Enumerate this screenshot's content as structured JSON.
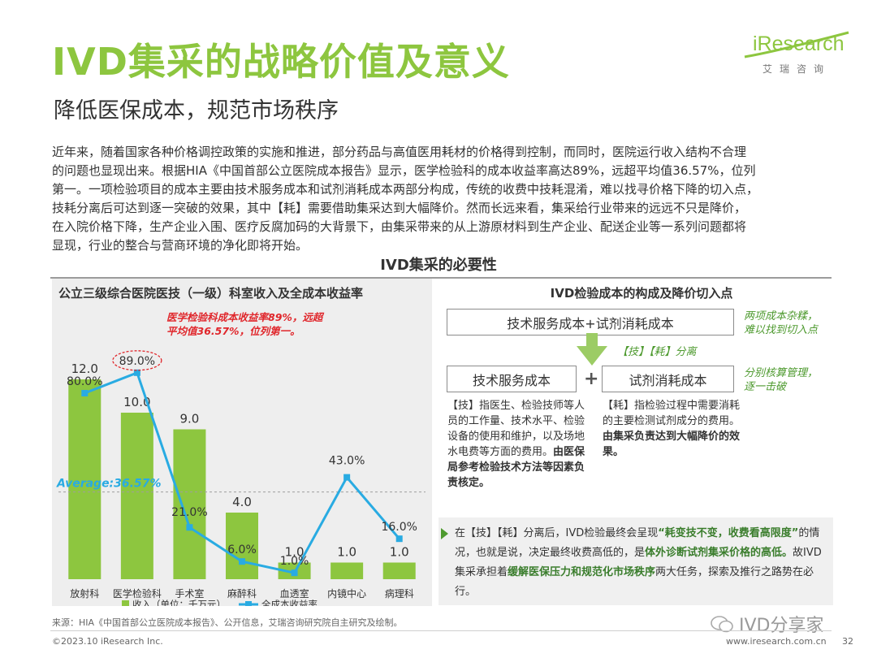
{
  "header": {
    "title": "IVD集采的战略价值及意义",
    "subtitle": "降低医保成本，规范市场秩序",
    "logo_text": "iResearch",
    "logo_sub": "艾瑞咨询"
  },
  "intro": [
    "近年来，随着国家各种价格调控政策的实施和推进，部分药品与高值医用耗材的价格得到控制，而同时，医院运行收入结构不合理",
    "的问题也显现出来。根据HIA《中国首部公立医院成本报告》显示，医学检验科的成本收益率高达89%，远超平均值36.57%，位列",
    "第一。一项检验项目的成本主要由技术服务成本和试剂消耗成本两部分构成，传统的收费中技耗混淆，难以找寻价格下降的切入点，",
    "技耗分离后可达到逐一突破的效果，其中【耗】需要借助集采达到大幅降价。然而长远来看，集采给行业带来的远远不只是降价，",
    "在入院价格下降，生产企业入围、医疗反腐加码的大背景下，由集采带来的从上游原材料到生产企业、配送企业等一系列问题都将",
    "显现，行业的整合与营商环境的净化即将开始。"
  ],
  "section_title": "IVD集采的必要性",
  "chart": {
    "title": "公立三级综合医院医技（一级）科室收入及全成本收益率",
    "note": "医学检验科成本收益率89%，远超平均值36.57%，位列第一。",
    "average_label": "Average:36.57%"
  },
  "chart_data": {
    "type": "bar",
    "categories": [
      "放射科",
      "医学检验科",
      "手术室",
      "麻醉科",
      "血透室",
      "内镜中心",
      "病理科"
    ],
    "series": [
      {
        "name": "收入（单位：千万元）",
        "type": "bar",
        "values": [
          12.0,
          10.0,
          9.0,
          4.0,
          1.0,
          1.0,
          1.0
        ],
        "labels": [
          "12.0",
          "10.0",
          "9.0",
          "4.0",
          "1.0",
          "1.0",
          "1.0"
        ],
        "color": "#8dc63f"
      },
      {
        "name": "全成本收益率",
        "type": "line",
        "values": [
          80.0,
          89.0,
          21.0,
          6.0,
          1.0,
          43.0,
          16.0
        ],
        "labels": [
          "80.0%",
          "89.0%",
          "21.0%",
          "6.0%",
          "1.0%",
          "43.0%",
          "16.0%"
        ],
        "color": "#29abe2"
      }
    ],
    "average": 36.57,
    "ylim_bar": [
      0,
      14
    ],
    "ylim_line": [
      -20,
      100
    ]
  },
  "diagram": {
    "title": "IVD检验成本的构成及降价切入点",
    "top_box": "技术服务成本+试剂消耗成本",
    "top_note": [
      "两项成本杂糅，",
      "难以找到切入点"
    ],
    "split_label": "【技】【耗】分离",
    "left_box": "技术服务成本",
    "plus": "+",
    "right_box": "试剂消耗成本",
    "right_note": [
      "分别核算管理，",
      "逐一击破"
    ],
    "left_desc": {
      "normal": "【技】指医生、检验技师等人员的工作量、技术水平、检验设备的使用和维护，以及场地水电费等方面的费用。",
      "bold": "由医保局参考检验技术方法等因素负责核定。"
    },
    "right_desc": {
      "normal": "【耗】指检验过程中需要消耗的主要检测试剂成分的费用。",
      "bold": "由集采负责达到大幅降价的效果。"
    }
  },
  "conclusion": {
    "p1": "在【技】【耗】分离后，IVD检验最终会呈现",
    "b1": "“耗变技不变，收费看高限度”",
    "p2": "的情况，也就是说，决定最终收费高低的，是",
    "b2": "体外诊断试剂集采价格的高低。",
    "p3": "故IVD集采承担着",
    "b3": "缓解医保压力和规范化市场秩序",
    "p4": "两大任务，探索及推行之路势在必行。"
  },
  "source": "来源：HIA《中国首部公立医院成本报告》、公开信息，艾瑞咨询研究院自主研究及绘制。",
  "footer": {
    "copyright": "©2023.10 iResearch Inc.",
    "url": "www.iresearch.com.cn",
    "page": "32",
    "watermark": "IVD分享家"
  }
}
